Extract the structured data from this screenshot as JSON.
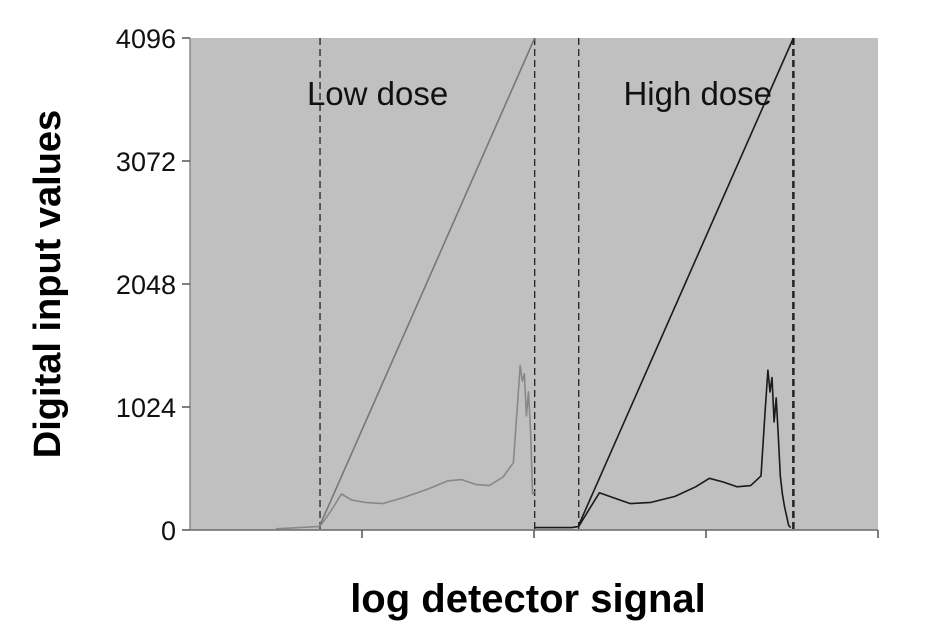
{
  "chart_data": {
    "type": "line",
    "ylabel": "Digital input values",
    "xlabel": "log detector signal",
    "ylim": [
      0,
      4096
    ],
    "yticks": [
      "0",
      "1024",
      "2048",
      "3072",
      "4096"
    ],
    "ytick_values": [
      0,
      1024,
      2048,
      3072,
      4096
    ],
    "xlim": [
      0,
      100
    ],
    "xticks": [
      25,
      50,
      75,
      100
    ],
    "grid": false,
    "legend": "none",
    "background_color": "#c0c0c0",
    "annotations": [
      {
        "text": "Low dose",
        "x": 17,
        "y": 3640
      },
      {
        "text": "High dose",
        "x": 63,
        "y": 3640
      }
    ],
    "vlines": [
      {
        "x": 18.9,
        "style": "dashed"
      },
      {
        "x": 50.1,
        "style": "dashed"
      },
      {
        "x": 56.5,
        "style": "dashed"
      },
      {
        "x": 87.7,
        "style": "dashed"
      }
    ],
    "series": [
      {
        "id": "low-dose-mapping",
        "color": "#777777",
        "x": [
          18.9,
          50.1
        ],
        "y": [
          40,
          4096
        ]
      },
      {
        "id": "low-dose-histogram",
        "color": "#888888",
        "x": [
          12.5,
          18.9,
          20.5,
          22.0,
          23.5,
          25.5,
          28.0,
          31.0,
          34.5,
          37.5,
          39.5,
          41.5,
          43.5,
          45.5,
          47.0,
          47.6,
          48.0,
          48.3,
          48.6,
          48.9,
          49.2,
          49.5,
          49.8,
          50.1
        ],
        "y": [
          10,
          30,
          160,
          300,
          250,
          230,
          220,
          270,
          340,
          410,
          420,
          380,
          370,
          440,
          560,
          1050,
          1370,
          1240,
          1300,
          950,
          1150,
          820,
          300,
          320
        ]
      },
      {
        "id": "high-dose-mapping",
        "color": "#1a1a1a",
        "x": [
          56.5,
          87.7
        ],
        "y": [
          40,
          4096
        ]
      },
      {
        "id": "high-dose-histogram",
        "color": "#1a1a1a",
        "x": [
          50.1,
          55.5,
          56.5,
          58.0,
          59.5,
          61.5,
          64.0,
          67.0,
          70.5,
          73.5,
          75.5,
          77.5,
          79.5,
          81.5,
          83.0,
          83.6,
          84.0,
          84.3,
          84.6,
          84.9,
          85.2,
          85.5,
          85.8,
          86.1,
          86.4,
          86.7,
          87.0,
          87.3
        ],
        "y": [
          20,
          20,
          30,
          170,
          310,
          270,
          220,
          230,
          280,
          360,
          430,
          400,
          360,
          370,
          450,
          1000,
          1330,
          1150,
          1270,
          900,
          1100,
          800,
          450,
          300,
          200,
          120,
          40,
          20
        ]
      }
    ]
  }
}
